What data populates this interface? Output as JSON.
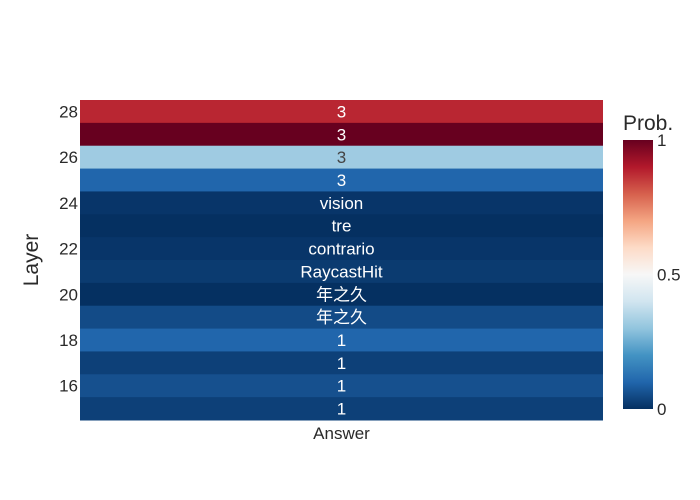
{
  "chart_data": {
    "type": "heatmap",
    "ylabel": "Layer",
    "xlabel": "",
    "x_categories": [
      "Answer"
    ],
    "y_range": [
      15,
      28
    ],
    "y_ticks": [
      16,
      18,
      20,
      22,
      24,
      26,
      28
    ],
    "rows": [
      {
        "layer": 28,
        "label": "3",
        "prob": 0.88
      },
      {
        "layer": 27,
        "label": "3",
        "prob": 1.0
      },
      {
        "layer": 26,
        "label": "3",
        "prob": 0.32
      },
      {
        "layer": 25,
        "label": "3",
        "prob": 0.1
      },
      {
        "layer": 24,
        "label": "vision",
        "prob": 0.01
      },
      {
        "layer": 23,
        "label": "tre",
        "prob": 0.0
      },
      {
        "layer": 22,
        "label": "contrario",
        "prob": 0.01
      },
      {
        "layer": 21,
        "label": "RaycastHit",
        "prob": 0.02
      },
      {
        "layer": 20,
        "label": "年之久",
        "prob": 0.0
      },
      {
        "layer": 19,
        "label": "年之久",
        "prob": 0.05
      },
      {
        "layer": 18,
        "label": "1",
        "prob": 0.1
      },
      {
        "layer": 17,
        "label": "1",
        "prob": 0.03
      },
      {
        "layer": 16,
        "label": "1",
        "prob": 0.06
      },
      {
        "layer": 15,
        "label": "1",
        "prob": 0.03
      }
    ],
    "colorbar": {
      "title": "Prob.",
      "min": 0,
      "max": 1,
      "ticks": [
        {
          "value": 0,
          "label": "0"
        },
        {
          "value": 0.5,
          "label": "0.5"
        },
        {
          "value": 1,
          "label": "1"
        }
      ],
      "colorscale": [
        [
          0,
          "#053061"
        ],
        [
          0.1,
          "#2166ac"
        ],
        [
          0.2,
          "#4393c3"
        ],
        [
          0.3,
          "#92c5de"
        ],
        [
          0.4,
          "#d1e5f0"
        ],
        [
          0.5,
          "#f7f7f7"
        ],
        [
          0.6,
          "#fddbc7"
        ],
        [
          0.7,
          "#f4a582"
        ],
        [
          0.8,
          "#d6604d"
        ],
        [
          0.9,
          "#b2182b"
        ],
        [
          1.0,
          "#67001f"
        ]
      ]
    }
  }
}
